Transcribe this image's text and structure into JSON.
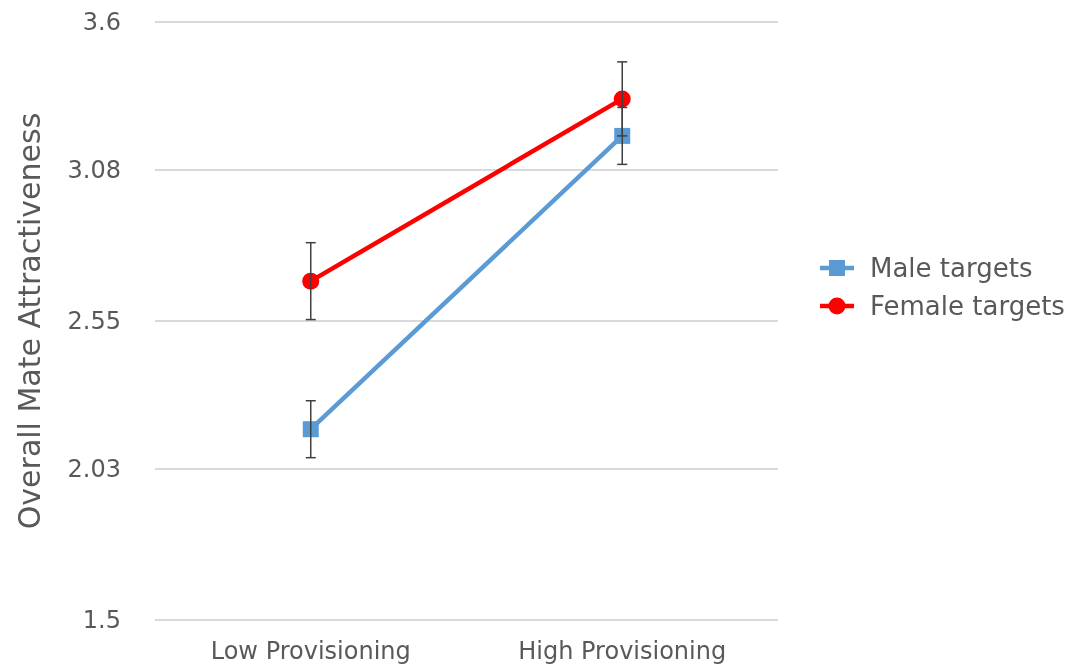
{
  "chart_data": {
    "type": "line",
    "ylabel": "Overall Mate Attractiveness",
    "categories": [
      "Low Provisioning",
      "High Provisioning"
    ],
    "series": [
      {
        "name": "Male targets",
        "color": "#5b9bd5",
        "marker": "square",
        "values": [
          2.17,
          3.2
        ],
        "errors": [
          0.1,
          0.1
        ]
      },
      {
        "name": "Female targets",
        "color": "#ff0000",
        "marker": "circle",
        "values": [
          2.69,
          3.33
        ],
        "errors": [
          0.135,
          0.13
        ]
      }
    ],
    "ylim": [
      1.5,
      3.6
    ],
    "yticks": [
      1.5,
      2.03,
      2.55,
      3.08,
      3.6
    ],
    "grid": "y",
    "legend": "right"
  }
}
